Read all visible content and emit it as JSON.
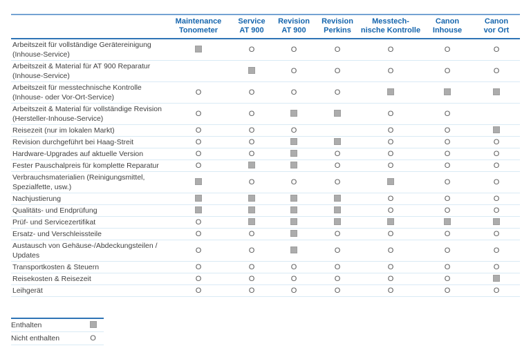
{
  "colors": {
    "header_text_blue": "#1565ad",
    "header_rule_blue": "#2e74b5",
    "top_rule_blue": "#74a3d3",
    "row_separator_blue": "#d9eaf5",
    "row_text_gray": "#404040",
    "square_gray": "#acacac",
    "o_mark_gray": "#595959"
  },
  "table": {
    "columns": [
      {
        "id": "maintenance-tonometer",
        "label_lines": [
          "Maintenance",
          "Tonometer"
        ]
      },
      {
        "id": "service-at900",
        "label_lines": [
          "Service",
          "AT 900"
        ]
      },
      {
        "id": "revision-at900",
        "label_lines": [
          "Revision",
          "AT 900"
        ]
      },
      {
        "id": "revision-perkins",
        "label_lines": [
          "Revision",
          "Perkins"
        ]
      },
      {
        "id": "messtechnische-kontrolle",
        "label_lines": [
          "Messtech-",
          "nische Kontrolle"
        ]
      },
      {
        "id": "canon-inhouse",
        "label_lines": [
          "Canon",
          "Inhouse"
        ]
      },
      {
        "id": "canon-vor-ort",
        "label_lines": [
          "Canon",
          "vor Ort"
        ]
      }
    ],
    "symbols": {
      "included": "filled-square",
      "not_included_glyph": "O"
    },
    "rows": [
      {
        "label": "Arbeitszeit für vollständige Gerätereinigung (Inhouse-Service)",
        "values": [
          "included",
          "not_included",
          "not_included",
          "not_included",
          "not_included",
          "not_included",
          "not_included"
        ]
      },
      {
        "label": "Arbeitszeit & Material für AT 900 Reparatur (Inhouse-Service)",
        "values": [
          "empty",
          "included",
          "not_included",
          "not_included",
          "not_included",
          "not_included",
          "not_included"
        ]
      },
      {
        "label": "Arbeitszeit für messtechnische Kontrolle (Inhouse- oder Vor-Ort-Service)",
        "values": [
          "not_included",
          "not_included",
          "not_included",
          "not_included",
          "included",
          "included",
          "included"
        ]
      },
      {
        "label": "Arbeitszeit & Material für vollständige Revision (Hersteller-Inhouse-Service)",
        "values": [
          "not_included",
          "not_included",
          "included",
          "included",
          "not_included",
          "not_included",
          "empty"
        ]
      },
      {
        "label": "Reisezeit (nur im lokalen Markt)",
        "values": [
          "not_included",
          "not_included",
          "not_included",
          "empty",
          "not_included",
          "not_included",
          "included"
        ]
      },
      {
        "label": "Revision durchgeführt bei Haag-Streit",
        "values": [
          "not_included",
          "not_included",
          "included",
          "included",
          "not_included",
          "not_included",
          "not_included"
        ]
      },
      {
        "label": "Hardware-Upgrades auf aktuelle Version",
        "values": [
          "not_included",
          "not_included",
          "included",
          "not_included",
          "not_included",
          "not_included",
          "not_included"
        ]
      },
      {
        "label": "Fester Pauschalpreis für komplette Reparatur",
        "values": [
          "not_included",
          "included",
          "included",
          "not_included",
          "not_included",
          "not_included",
          "not_included"
        ]
      },
      {
        "label": "Verbrauchsmaterialien (Reinigungsmittel, Spezialfette, usw.)",
        "values": [
          "included",
          "not_included",
          "not_included",
          "not_included",
          "included",
          "not_included",
          "not_included"
        ]
      },
      {
        "label": "Nachjustierung",
        "values": [
          "included",
          "included",
          "included",
          "included",
          "not_included",
          "not_included",
          "not_included"
        ]
      },
      {
        "label": "Qualitäts- und Endprüfung",
        "values": [
          "included",
          "included",
          "included",
          "included",
          "not_included",
          "not_included",
          "not_included"
        ]
      },
      {
        "label": "Prüf- und Servicezertifikat",
        "values": [
          "not_included",
          "included",
          "included",
          "included",
          "included",
          "included",
          "included"
        ]
      },
      {
        "label": "Ersatz- und Verschleissteile",
        "values": [
          "not_included",
          "not_included",
          "included",
          "not_included",
          "not_included",
          "not_included",
          "not_included"
        ]
      },
      {
        "label": "Austausch von Gehäuse-/Abdeckungsteilen / Updates",
        "values": [
          "not_included",
          "not_included",
          "included",
          "not_included",
          "not_included",
          "not_included",
          "not_included"
        ]
      },
      {
        "label": "Transportkosten & Steuern",
        "values": [
          "not_included",
          "not_included",
          "not_included",
          "not_included",
          "not_included",
          "not_included",
          "not_included"
        ]
      },
      {
        "label": "Reisekosten & Reisezeit",
        "values": [
          "not_included",
          "not_included",
          "not_included",
          "not_included",
          "not_included",
          "not_included",
          "included"
        ]
      },
      {
        "label": "Leihgerät",
        "values": [
          "not_included",
          "not_included",
          "not_included",
          "not_included",
          "not_included",
          "not_included",
          "not_included"
        ]
      }
    ]
  },
  "legend": {
    "items": [
      {
        "label": "Enthalten",
        "symbol": "included"
      },
      {
        "label": "Nicht enthalten",
        "symbol": "not_included"
      }
    ]
  }
}
